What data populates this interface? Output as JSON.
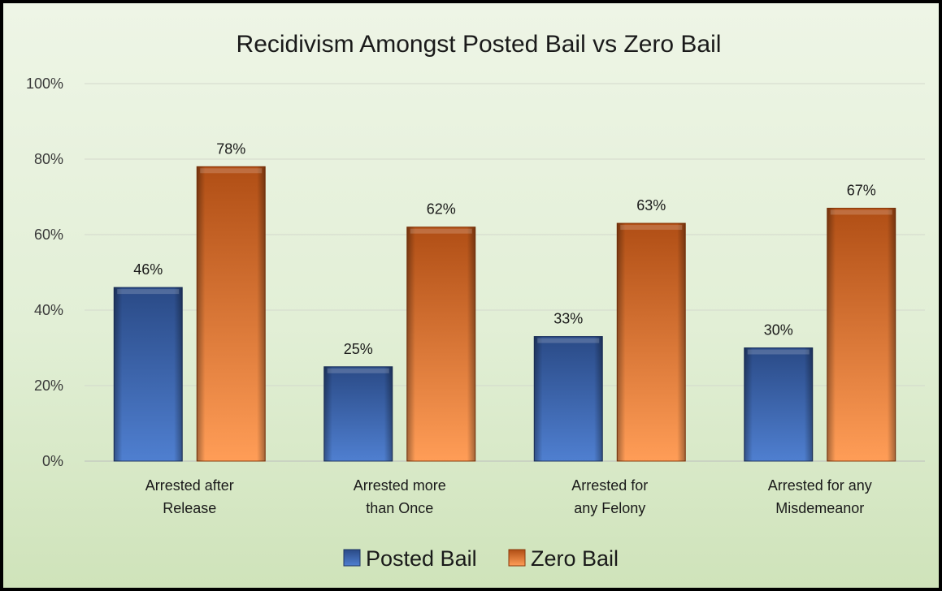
{
  "chart_data": {
    "type": "bar",
    "title": "Recidivism Amongst Posted Bail vs Zero Bail",
    "categories": [
      [
        "Arrested after",
        "Release"
      ],
      [
        "Arrested more",
        "than Once"
      ],
      [
        "Arrested for",
        "any Felony"
      ],
      [
        "Arrested for any",
        "Misdemeanor"
      ]
    ],
    "series": [
      {
        "name": "Posted Bail",
        "values": [
          46,
          25,
          33,
          30
        ],
        "labels": [
          "46%",
          "25%",
          "33%",
          "30%"
        ],
        "color": "#4472c4"
      },
      {
        "name": "Zero Bail",
        "values": [
          78,
          62,
          63,
          67
        ],
        "labels": [
          "78%",
          "62%",
          "63%",
          "67%"
        ],
        "color": "#ed7d31"
      }
    ],
    "y_ticks": [
      {
        "value": 0,
        "label": "0%"
      },
      {
        "value": 20,
        "label": "20%"
      },
      {
        "value": 40,
        "label": "40%"
      },
      {
        "value": 60,
        "label": "60%"
      },
      {
        "value": 80,
        "label": "80%"
      },
      {
        "value": 100,
        "label": "100%"
      }
    ],
    "ylim": [
      0,
      100
    ],
    "grid": true,
    "legend_position": "bottom"
  }
}
